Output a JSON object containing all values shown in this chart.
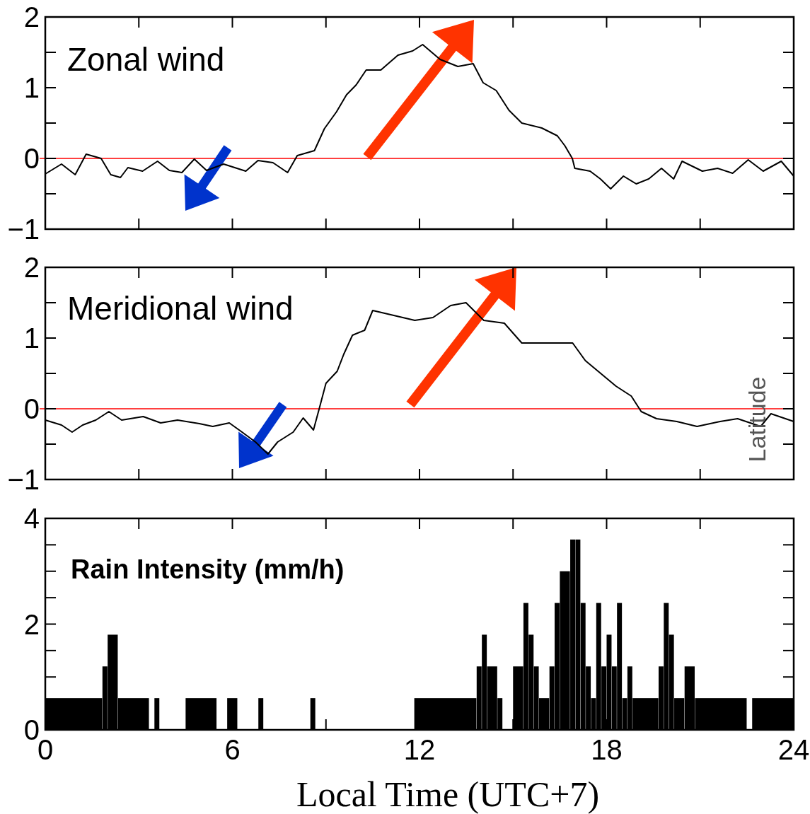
{
  "chart_data": [
    {
      "type": "line",
      "title": "Zonal wind",
      "xlim": [
        0,
        24
      ],
      "ylim": [
        -1,
        2
      ],
      "xticks": [
        0,
        3,
        6,
        9,
        12,
        15,
        18,
        21,
        24
      ],
      "yticks": [
        {
          "value": -1,
          "label": "−1"
        },
        {
          "value": -0.5,
          "label": null
        },
        0,
        {
          "value": 0.5,
          "label": null
        },
        1,
        {
          "value": 1.5,
          "label": null
        },
        2
      ],
      "tick_labels": "y",
      "color": "#000000",
      "x": [
        0,
        0.52,
        0.96,
        1.31,
        1.79,
        2.1,
        2.41,
        2.65,
        3.12,
        3.6,
        3.98,
        4.38,
        4.78,
        5.17,
        5.72,
        6.43,
        6.82,
        7.3,
        7.77,
        8.08,
        8.63,
        8.95,
        9.34,
        9.66,
        9.97,
        10.29,
        10.76,
        11.31,
        11.78,
        12.1,
        12.66,
        13.23,
        13.72,
        14.04,
        14.46,
        14.87,
        15.28,
        15.92,
        16.42,
        16.66,
        16.9,
        16.98,
        17.47,
        17.8,
        18.13,
        18.54,
        18.95,
        19.35,
        19.76,
        20.15,
        20.42,
        21.07,
        21.56,
        22.04,
        22.54,
        23.02,
        23.6,
        24
      ],
      "values": [
        -0.22,
        -0.08,
        -0.23,
        0.06,
        0,
        -0.23,
        -0.27,
        -0.13,
        -0.18,
        -0.04,
        -0.17,
        -0.2,
        -0.01,
        -0.17,
        -0.08,
        -0.18,
        -0.03,
        -0.06,
        -0.2,
        0.04,
        0.11,
        0.42,
        0.66,
        0.9,
        1.04,
        1.25,
        1.25,
        1.46,
        1.52,
        1.61,
        1.4,
        1.3,
        1.34,
        1.07,
        0.96,
        0.68,
        0.5,
        0.43,
        0.32,
        0.18,
        0,
        -0.14,
        -0.18,
        -0.29,
        -0.43,
        -0.25,
        -0.36,
        -0.29,
        -0.14,
        -0.29,
        -0.04,
        -0.18,
        -0.14,
        -0.21,
        -0.02,
        -0.18,
        -0.04,
        -0.25
      ],
      "ref_lines": [
        {
          "axis": "y",
          "value": 0,
          "color": "#ff0000"
        }
      ]
    },
    {
      "type": "line",
      "title": "Meridional wind",
      "xlim": [
        0,
        24
      ],
      "ylim": [
        -1,
        2
      ],
      "xticks": [
        0,
        3,
        6,
        9,
        12,
        15,
        18,
        21,
        24
      ],
      "yticks": [
        {
          "value": -1,
          "label": "−1"
        },
        {
          "value": -0.5,
          "label": null
        },
        0,
        {
          "value": 0.5,
          "label": null
        },
        1,
        {
          "value": 1.5,
          "label": null
        },
        2
      ],
      "tick_labels": "y",
      "color": "#000000",
      "x": [
        0,
        0.52,
        0.86,
        1.2,
        1.62,
        2.04,
        2.45,
        3.14,
        3.7,
        4.24,
        4.94,
        5.37,
        5.9,
        6.31,
        6.74,
        7.14,
        7.45,
        7.95,
        8.27,
        8.6,
        8.79,
        9.0,
        9.36,
        9.57,
        9.85,
        10.24,
        10.5,
        11.85,
        12.43,
        13.0,
        13.49,
        14.06,
        14.72,
        15.28,
        16.1,
        16.91,
        17.32,
        17.81,
        18.3,
        18.79,
        19.11,
        19.6,
        20.25,
        20.9,
        21.64,
        22.2,
        22.94,
        23.27,
        24
      ],
      "values": [
        -0.16,
        -0.23,
        -0.33,
        -0.23,
        -0.16,
        -0.04,
        -0.16,
        -0.11,
        -0.2,
        -0.16,
        -0.21,
        -0.25,
        -0.2,
        -0.33,
        -0.47,
        -0.64,
        -0.47,
        -0.33,
        -0.13,
        -0.3,
        0.01,
        0.36,
        0.53,
        0.77,
        1.04,
        1.11,
        1.39,
        1.25,
        1.29,
        1.46,
        1.5,
        1.25,
        1.21,
        0.93,
        0.93,
        0.93,
        0.68,
        0.5,
        0.32,
        0.18,
        -0.04,
        -0.14,
        -0.18,
        -0.25,
        -0.18,
        -0.14,
        -0.25,
        -0.07,
        -0.18
      ],
      "ref_lines": [
        {
          "axis": "y",
          "value": 0,
          "color": "#ff0000"
        }
      ],
      "annotations": [
        "Latitude"
      ]
    },
    {
      "type": "histogram",
      "title": "Rain Intensity (mm/h)",
      "xlabel": "Local Time (UTC+7)",
      "xlim": [
        0,
        24
      ],
      "ylim": [
        0,
        4
      ],
      "xticks": [
        0,
        {
          "value": 3,
          "label": null
        },
        6,
        {
          "value": 9,
          "label": null
        },
        12,
        {
          "value": 15,
          "label": null
        },
        18,
        {
          "value": 21,
          "label": null
        },
        24
      ],
      "yticks": [
        0,
        {
          "value": 0.5,
          "label": null
        },
        {
          "value": 1,
          "label": null
        },
        {
          "value": 1.5,
          "label": null
        },
        2,
        {
          "value": 2.5,
          "label": null
        },
        {
          "value": 3,
          "label": null
        },
        {
          "value": 3.5,
          "label": null
        },
        4
      ],
      "color": "#000000",
      "bins": [
        0,
        1.833,
        2,
        2.333,
        3.333,
        3.5,
        3.667,
        4.5,
        5.5,
        5.833,
        6.167,
        6.833,
        7,
        8.5,
        8.667,
        11.833,
        13.833,
        14,
        14.167,
        14.5,
        14.667,
        15,
        15.333,
        15.5,
        15.667,
        15.833,
        16.167,
        16.333,
        16.5,
        16.833,
        17,
        17.167,
        17.333,
        17.5,
        17.667,
        17.833,
        18,
        18.167,
        18.333,
        18.5,
        18.667,
        18.833,
        19.667,
        19.833,
        20,
        20.167,
        20.5,
        20.833,
        22.5,
        22.667,
        24
      ],
      "values": [
        0.6,
        1.2,
        1.8,
        0.6,
        0,
        0.6,
        0,
        0.6,
        0,
        0.6,
        0,
        0.6,
        0,
        0.6,
        0,
        0.6,
        1.2,
        1.8,
        1.2,
        0.6,
        0,
        1.2,
        2.4,
        1.8,
        1.2,
        0.6,
        1.2,
        2.4,
        3.0,
        3.6,
        3.6,
        2.4,
        1.2,
        0.6,
        2.4,
        1.2,
        1.8,
        1.2,
        2.4,
        0.6,
        1.2,
        0.6,
        1.2,
        2.4,
        1.8,
        0.6,
        1.2,
        0.6,
        0,
        0.6
      ]
    }
  ]
}
